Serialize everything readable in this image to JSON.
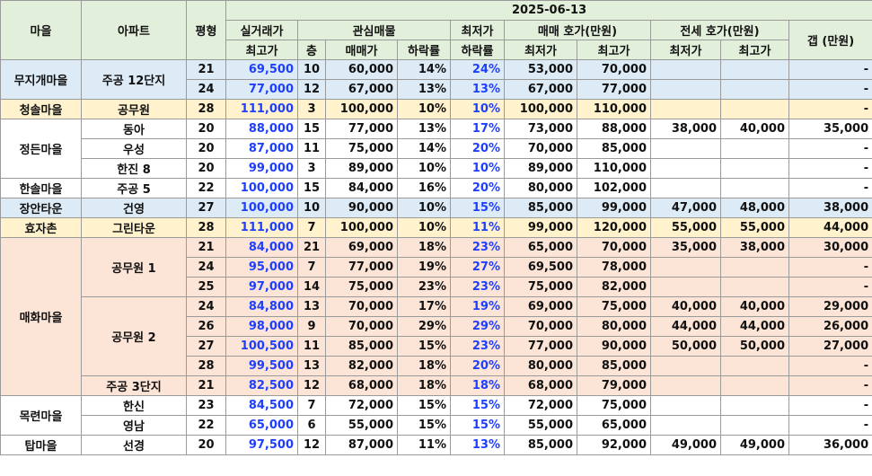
{
  "header": {
    "date": "2025-06-13",
    "village": "마을",
    "apartment": "아파트",
    "pyeong": "평형",
    "actual_trade": "실거래가",
    "actual_max": "최고가",
    "interest": "관심매물",
    "floor": "층",
    "sale_price": "매매가",
    "drop_rate": "하락률",
    "min_price": "최저가",
    "min_drop": "하락률",
    "sale_ask": "매매 호가(만원)",
    "sale_min": "최저가",
    "sale_max": "최고가",
    "jeonse_ask": "전세 호가(만원)",
    "jeonse_min": "최저가",
    "jeonse_max": "최고가",
    "gap": "갭 (만원)"
  },
  "rows": [
    {
      "village": "무지개마을",
      "apt": "주공 12단지",
      "p": "21",
      "act": "69,500",
      "fl": "10",
      "sale": "60,000",
      "dr": "14%",
      "md": "24%",
      "smin": "53,000",
      "smax": "70,000",
      "jmin": "",
      "jmax": "",
      "gap": "-"
    },
    {
      "p": "24",
      "act": "77,000",
      "fl": "12",
      "sale": "67,000",
      "dr": "13%",
      "md": "13%",
      "smin": "67,000",
      "smax": "77,000",
      "jmin": "",
      "jmax": "",
      "gap": "-"
    },
    {
      "village": "청솔마을",
      "apt": "공무원",
      "p": "28",
      "act": "111,000",
      "fl": "3",
      "sale": "100,000",
      "dr": "10%",
      "md": "10%",
      "smin": "100,000",
      "smax": "110,000",
      "jmin": "",
      "jmax": "",
      "gap": "-"
    },
    {
      "village": "정든마을",
      "apt": "동아",
      "p": "20",
      "act": "88,000",
      "fl": "15",
      "sale": "77,000",
      "dr": "13%",
      "md": "17%",
      "smin": "73,000",
      "smax": "88,000",
      "jmin": "38,000",
      "jmax": "40,000",
      "gap": "35,000"
    },
    {
      "apt": "우성",
      "p": "20",
      "act": "87,000",
      "fl": "11",
      "sale": "75,000",
      "dr": "14%",
      "md": "20%",
      "smin": "70,000",
      "smax": "85,000",
      "jmin": "",
      "jmax": "",
      "gap": "-"
    },
    {
      "apt": "한진 8",
      "p": "20",
      "act": "99,000",
      "fl": "3",
      "sale": "89,000",
      "dr": "10%",
      "md": "10%",
      "smin": "89,000",
      "smax": "110,000",
      "jmin": "",
      "jmax": "",
      "gap": "-"
    },
    {
      "village": "한솔마을",
      "apt": "주공 5",
      "p": "22",
      "act": "100,000",
      "fl": "15",
      "sale": "84,000",
      "dr": "16%",
      "md": "20%",
      "smin": "80,000",
      "smax": "102,000",
      "jmin": "",
      "jmax": "",
      "gap": "-"
    },
    {
      "village": "장안타운",
      "apt": "건영",
      "p": "27",
      "act": "100,000",
      "fl": "10",
      "sale": "90,000",
      "dr": "10%",
      "md": "15%",
      "smin": "85,000",
      "smax": "99,000",
      "jmin": "47,000",
      "jmax": "48,000",
      "gap": "38,000"
    },
    {
      "village": "효자촌",
      "apt": "그린타운",
      "p": "28",
      "act": "111,000",
      "fl": "7",
      "sale": "100,000",
      "dr": "10%",
      "md": "11%",
      "smin": "99,000",
      "smax": "120,000",
      "jmin": "55,000",
      "jmax": "55,000",
      "gap": "44,000"
    },
    {
      "village": "매화마을",
      "apt": "공무원 1",
      "p": "21",
      "act": "84,000",
      "fl": "21",
      "sale": "69,000",
      "dr": "18%",
      "md": "23%",
      "smin": "65,000",
      "smax": "70,000",
      "jmin": "35,000",
      "jmax": "38,000",
      "gap": "30,000"
    },
    {
      "p": "24",
      "act": "95,000",
      "fl": "7",
      "sale": "77,000",
      "dr": "19%",
      "md": "27%",
      "smin": "69,500",
      "smax": "78,000",
      "jmin": "",
      "jmax": "",
      "gap": "-"
    },
    {
      "p": "25",
      "act": "97,000",
      "fl": "14",
      "sale": "75,000",
      "dr": "23%",
      "md": "23%",
      "smin": "75,000",
      "smax": "82,000",
      "jmin": "",
      "jmax": "",
      "gap": "-"
    },
    {
      "apt": "공무원 2",
      "p": "24",
      "act": "84,800",
      "fl": "13",
      "sale": "70,000",
      "dr": "17%",
      "md": "19%",
      "smin": "69,000",
      "smax": "75,000",
      "jmin": "40,000",
      "jmax": "40,000",
      "gap": "29,000"
    },
    {
      "p": "26",
      "act": "98,000",
      "fl": "9",
      "sale": "70,000",
      "dr": "29%",
      "md": "29%",
      "smin": "70,000",
      "smax": "80,000",
      "jmin": "44,000",
      "jmax": "44,000",
      "gap": "26,000"
    },
    {
      "p": "27",
      "act": "100,500",
      "fl": "11",
      "sale": "85,000",
      "dr": "15%",
      "md": "23%",
      "smin": "77,000",
      "smax": "90,000",
      "jmin": "50,000",
      "jmax": "50,000",
      "gap": "27,000"
    },
    {
      "p": "28",
      "act": "99,500",
      "fl": "13",
      "sale": "82,000",
      "dr": "18%",
      "md": "20%",
      "smin": "80,000",
      "smax": "85,000",
      "jmin": "",
      "jmax": "",
      "gap": "-"
    },
    {
      "apt": "주공 3단지",
      "p": "21",
      "act": "82,500",
      "fl": "12",
      "sale": "68,000",
      "dr": "18%",
      "md": "18%",
      "smin": "68,000",
      "smax": "79,000",
      "jmin": "",
      "jmax": "",
      "gap": "-"
    },
    {
      "village": "목련마을",
      "apt": "한신",
      "p": "23",
      "act": "84,500",
      "fl": "7",
      "sale": "72,000",
      "dr": "15%",
      "md": "15%",
      "smin": "72,000",
      "smax": "75,000",
      "jmin": "",
      "jmax": "",
      "gap": "-"
    },
    {
      "apt": "영남",
      "p": "22",
      "act": "65,000",
      "fl": "6",
      "sale": "55,000",
      "dr": "15%",
      "md": "15%",
      "smin": "55,000",
      "smax": "65,000",
      "jmin": "",
      "jmax": "",
      "gap": "-"
    },
    {
      "village": "탑마을",
      "apt": "선경",
      "p": "20",
      "act": "97,500",
      "fl": "12",
      "sale": "87,000",
      "dr": "11%",
      "md": "13%",
      "smin": "85,000",
      "smax": "92,000",
      "jmin": "49,000",
      "jmax": "49,000",
      "gap": "36,000"
    }
  ]
}
